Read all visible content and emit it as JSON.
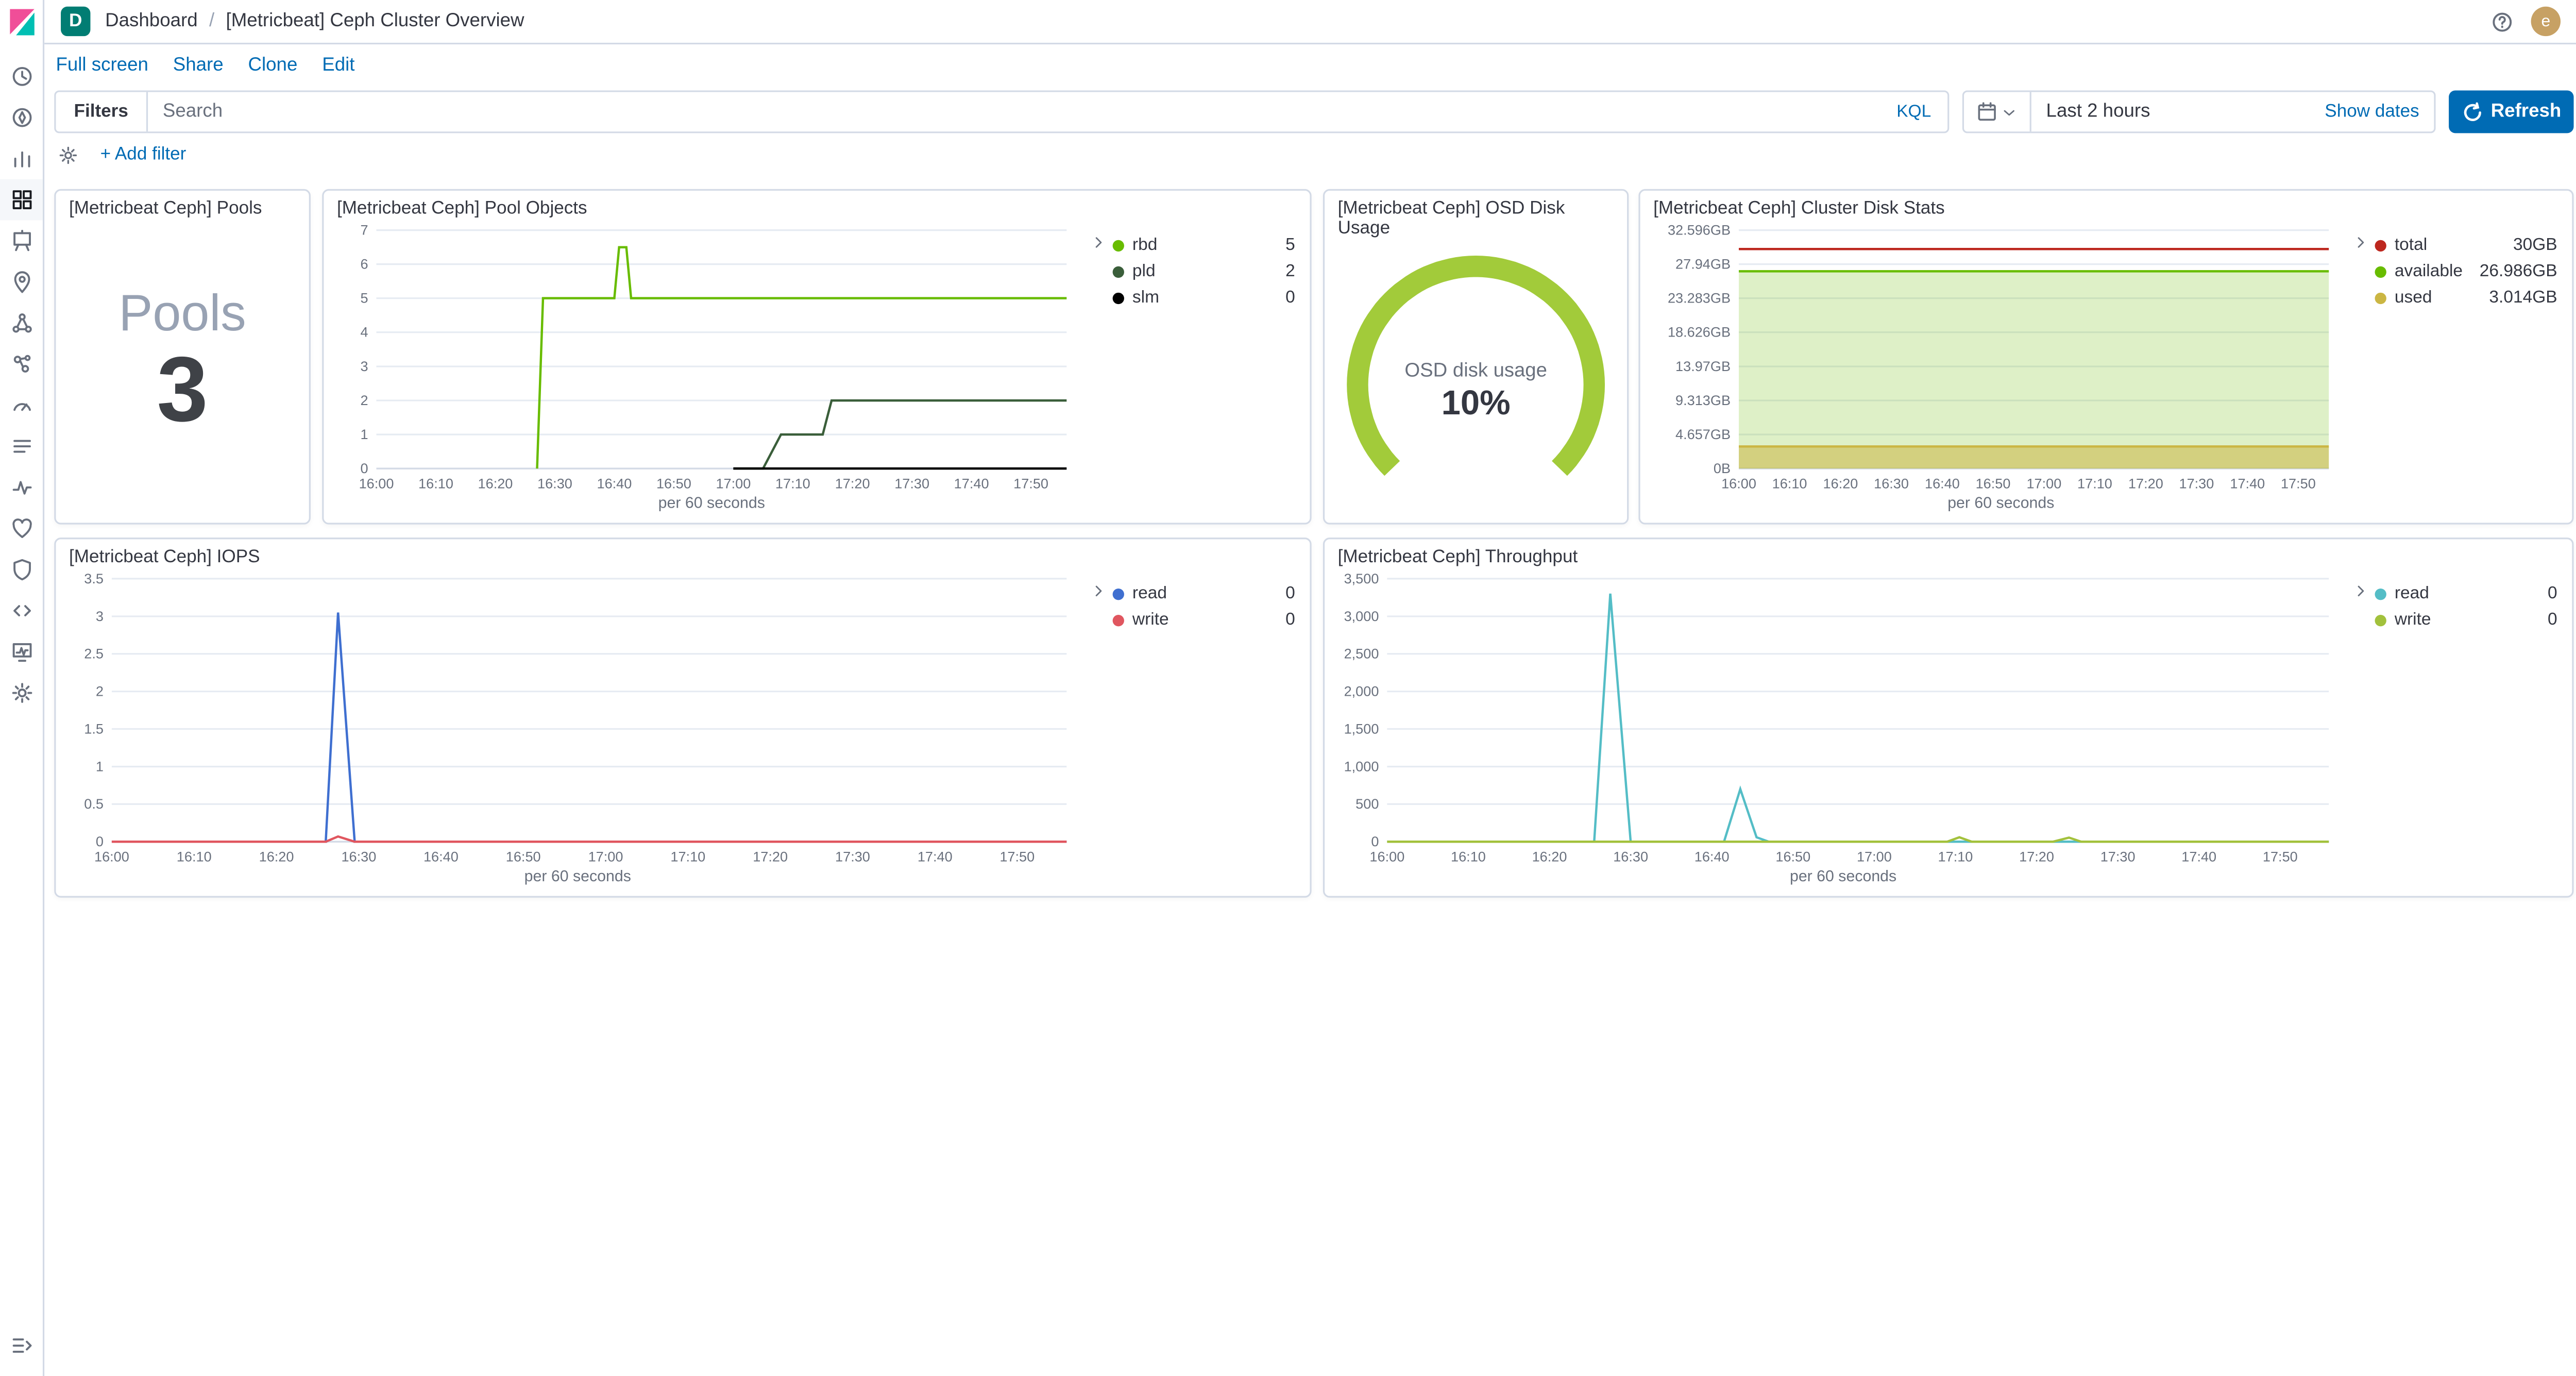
{
  "colors": {
    "accent": "#006BB4",
    "refresh_button": "#006BB4",
    "gauge_green": "#A2CB3A",
    "panel_border": "#D3DAE6",
    "space_badge": "#017D73",
    "avatar": "#C7A164"
  },
  "chrome": {
    "space_initial": "D",
    "breadcrumbs": [
      {
        "label": "Dashboard"
      },
      {
        "label": "[Metricbeat] Ceph Cluster Overview"
      }
    ],
    "avatar_initial": "e"
  },
  "menubar": {
    "items": [
      {
        "label": "Full screen"
      },
      {
        "label": "Share"
      },
      {
        "label": "Clone"
      },
      {
        "label": "Edit"
      }
    ]
  },
  "query_bar": {
    "filters_label": "Filters",
    "search_placeholder": "Search",
    "kql_label": "KQL",
    "time_value": "Last 2 hours",
    "show_dates_label": "Show dates",
    "refresh_label": "Refresh",
    "add_filter_label": "+ Add filter"
  },
  "sidebar": {
    "items": [
      {
        "name": "recently-viewed",
        "icon": "clock",
        "active": false
      },
      {
        "name": "discover",
        "icon": "discover",
        "active": false
      },
      {
        "name": "visualize",
        "icon": "visualize",
        "active": false
      },
      {
        "name": "dashboard",
        "icon": "dashboard",
        "active": true
      },
      {
        "name": "canvas",
        "icon": "canvas",
        "active": false
      },
      {
        "name": "maps",
        "icon": "maps",
        "active": false
      },
      {
        "name": "machine-learning",
        "icon": "ml",
        "active": false
      },
      {
        "name": "graph",
        "icon": "graph",
        "active": false
      },
      {
        "name": "metrics",
        "icon": "metrics",
        "active": false
      },
      {
        "name": "logs",
        "icon": "logs",
        "active": false
      },
      {
        "name": "apm",
        "icon": "apm",
        "active": false
      },
      {
        "name": "uptime",
        "icon": "uptime",
        "active": false
      },
      {
        "name": "siem",
        "icon": "siem",
        "active": false
      },
      {
        "name": "dev-tools",
        "icon": "devtools",
        "active": false
      },
      {
        "name": "stack-monitoring",
        "icon": "monitoring",
        "active": false
      },
      {
        "name": "management",
        "icon": "gear",
        "active": false
      }
    ]
  },
  "panels": {
    "pools": {
      "title": "[Metricbeat Ceph] Pools",
      "label": "Pools",
      "value": "3"
    },
    "pool_objects": {
      "title": "[Metricbeat Ceph] Pool Objects",
      "xlabel": "per 60 seconds",
      "legend": [
        {
          "name": "rbd",
          "value": "5",
          "color": "#68BC00"
        },
        {
          "name": "pld",
          "value": "2",
          "color": "#3A5E3A"
        },
        {
          "name": "slm",
          "value": "0",
          "color": "#000000"
        }
      ]
    },
    "osd": {
      "title": "[Metricbeat Ceph] OSD Disk Usage",
      "label": "OSD disk usage",
      "value": "10%"
    },
    "disk_stats": {
      "title": "[Metricbeat Ceph] Cluster Disk Stats",
      "xlabel": "per 60 seconds",
      "legend": [
        {
          "name": "total",
          "value": "30GB",
          "color": "#BD271E"
        },
        {
          "name": "available",
          "value": "26.986GB",
          "color": "#68BC00"
        },
        {
          "name": "used",
          "value": "3.014GB",
          "color": "#CBB643"
        }
      ]
    },
    "iops": {
      "title": "[Metricbeat Ceph] IOPS",
      "xlabel": "per 60 seconds",
      "legend": [
        {
          "name": "read",
          "value": "0",
          "color": "#3F6FD0"
        },
        {
          "name": "write",
          "value": "0",
          "color": "#E0565F"
        }
      ]
    },
    "throughput": {
      "title": "[Metricbeat Ceph] Throughput",
      "xlabel": "per 60 seconds",
      "legend": [
        {
          "name": "read",
          "value": "0",
          "color": "#54BDC6"
        },
        {
          "name": "write",
          "value": "0",
          "color": "#A2C13C"
        }
      ]
    }
  },
  "chart_data": [
    {
      "id": "pools_metric",
      "type": "metric",
      "title": "[Metricbeat Ceph] Pools",
      "label": "Pools",
      "value": 3
    },
    {
      "id": "osd_gauge",
      "type": "gauge",
      "title": "[Metricbeat Ceph] OSD Disk Usage",
      "label": "OSD disk usage",
      "value": 10,
      "value_label": "10%",
      "min": 0,
      "max": 100,
      "color": "#A2CB3A"
    },
    {
      "id": "pool_objects",
      "type": "line",
      "title": "[Metricbeat Ceph] Pool Objects",
      "xlabel": "per 60 seconds",
      "x_unit": "minutes after 16:00",
      "x_domain": [
        0,
        116
      ],
      "x_tick_pos": [
        0,
        10,
        20,
        30,
        40,
        50,
        60,
        70,
        80,
        90,
        100,
        110
      ],
      "x_ticks": [
        "16:00",
        "16:10",
        "16:20",
        "16:30",
        "16:40",
        "16:50",
        "17:00",
        "17:10",
        "17:20",
        "17:30",
        "17:40",
        "17:50"
      ],
      "ylim": [
        0,
        7
      ],
      "y_ticks": [
        0,
        1,
        2,
        3,
        4,
        5,
        6,
        7
      ],
      "y_tick_labels": [
        "0",
        "1",
        "2",
        "3",
        "4",
        "5",
        "6",
        "7"
      ],
      "margin_left": 24,
      "grid": true,
      "legend_position": "right",
      "series": [
        {
          "name": "rbd",
          "color": "#68BC00",
          "points": [
            [
              27,
              0
            ],
            [
              28,
              5
            ],
            [
              40,
              5
            ],
            [
              40.8,
              6.5
            ],
            [
              42,
              6.5
            ],
            [
              42.8,
              5
            ],
            [
              116,
              5
            ]
          ]
        },
        {
          "name": "pld",
          "color": "#3A5E3A",
          "points": [
            [
              60,
              0
            ],
            [
              65,
              0
            ],
            [
              68,
              1
            ],
            [
              75,
              1
            ],
            [
              76.5,
              2
            ],
            [
              116,
              2
            ]
          ]
        },
        {
          "name": "slm",
          "color": "#000000",
          "points": [
            [
              60,
              0
            ],
            [
              116,
              0
            ]
          ]
        }
      ]
    },
    {
      "id": "disk_stats",
      "type": "area",
      "title": "[Metricbeat Ceph] Cluster Disk Stats",
      "xlabel": "per 60 seconds",
      "x_unit": "minutes after 16:00",
      "x_domain": [
        0,
        116
      ],
      "x_tick_pos": [
        0,
        10,
        20,
        30,
        40,
        50,
        60,
        70,
        80,
        90,
        100,
        110
      ],
      "x_ticks": [
        "16:00",
        "16:10",
        "16:20",
        "16:30",
        "16:40",
        "16:50",
        "17:00",
        "17:10",
        "17:20",
        "17:30",
        "17:40",
        "17:50"
      ],
      "ylim": [
        0,
        32.596
      ],
      "y_ticks": [
        0,
        4.657,
        9.313,
        13.97,
        18.626,
        23.283,
        27.94,
        32.596
      ],
      "y_tick_labels": [
        "0B",
        "4.657GB",
        "9.313GB",
        "13.97GB",
        "18.626GB",
        "23.283GB",
        "27.94GB",
        "32.596GB"
      ],
      "margin_left": 52,
      "grid": true,
      "legend_position": "right",
      "series": [
        {
          "name": "available",
          "color": "#68BC00",
          "fill_opacity": 0.22,
          "points": [
            [
              0,
              26.986
            ],
            [
              116,
              26.986
            ]
          ]
        },
        {
          "name": "used",
          "color": "#CBB643",
          "fill_opacity": 0.55,
          "points": [
            [
              0,
              3.014
            ],
            [
              116,
              3.014
            ]
          ]
        },
        {
          "name": "total",
          "color": "#BD271E",
          "points": [
            [
              0,
              30
            ],
            [
              116,
              30
            ]
          ]
        }
      ]
    },
    {
      "id": "iops",
      "type": "line",
      "title": "[Metricbeat Ceph] IOPS",
      "xlabel": "per 60 seconds",
      "x_unit": "minutes after 16:00",
      "x_domain": [
        0,
        116
      ],
      "x_tick_pos": [
        0,
        10,
        20,
        30,
        40,
        50,
        60,
        70,
        80,
        90,
        100,
        110
      ],
      "x_ticks": [
        "16:00",
        "16:10",
        "16:20",
        "16:30",
        "16:40",
        "16:50",
        "17:00",
        "17:10",
        "17:20",
        "17:30",
        "17:40",
        "17:50"
      ],
      "ylim": [
        0,
        3.5
      ],
      "y_ticks": [
        0,
        0.5,
        1,
        1.5,
        2,
        2.5,
        3,
        3.5
      ],
      "y_tick_labels": [
        "0",
        "0.5",
        "1",
        "1.5",
        "2",
        "2.5",
        "3",
        "3.5"
      ],
      "margin_left": 26,
      "grid": true,
      "legend_position": "right",
      "series": [
        {
          "name": "read",
          "color": "#3F6FD0",
          "points": [
            [
              0,
              0
            ],
            [
              26,
              0
            ],
            [
              27.5,
              3.05
            ],
            [
              29.5,
              0
            ],
            [
              116,
              0
            ]
          ]
        },
        {
          "name": "write",
          "color": "#E0565F",
          "points": [
            [
              0,
              0
            ],
            [
              26,
              0
            ],
            [
              27.5,
              0.07
            ],
            [
              29.5,
              0
            ],
            [
              116,
              0
            ]
          ]
        }
      ]
    },
    {
      "id": "throughput",
      "type": "line",
      "title": "[Metricbeat Ceph] Throughput",
      "xlabel": "per 60 seconds",
      "x_unit": "minutes after 16:00",
      "x_domain": [
        0,
        116
      ],
      "x_tick_pos": [
        0,
        10,
        20,
        30,
        40,
        50,
        60,
        70,
        80,
        90,
        100,
        110
      ],
      "x_ticks": [
        "16:00",
        "16:10",
        "16:20",
        "16:30",
        "16:40",
        "16:50",
        "17:00",
        "17:10",
        "17:20",
        "17:30",
        "17:40",
        "17:50"
      ],
      "ylim": [
        0,
        3500
      ],
      "y_ticks": [
        0,
        500,
        1000,
        1500,
        2000,
        2500,
        3000,
        3500
      ],
      "y_tick_labels": [
        "0",
        "500",
        "1,000",
        "1,500",
        "2,000",
        "2,500",
        "3,000",
        "3,500"
      ],
      "margin_left": 30,
      "grid": true,
      "legend_position": "right",
      "series": [
        {
          "name": "read",
          "color": "#54BDC6",
          "points": [
            [
              0,
              0
            ],
            [
              25.5,
              0
            ],
            [
              27.5,
              3300
            ],
            [
              30,
              0
            ],
            [
              41.5,
              0
            ],
            [
              43.5,
              700
            ],
            [
              45.5,
              60
            ],
            [
              47,
              0
            ],
            [
              116,
              0
            ]
          ]
        },
        {
          "name": "write",
          "color": "#A2C13C",
          "points": [
            [
              0,
              0
            ],
            [
              69,
              0
            ],
            [
              70.5,
              60
            ],
            [
              72,
              0
            ],
            [
              82,
              0
            ],
            [
              84,
              55
            ],
            [
              85.5,
              0
            ],
            [
              116,
              0
            ]
          ]
        }
      ]
    }
  ]
}
